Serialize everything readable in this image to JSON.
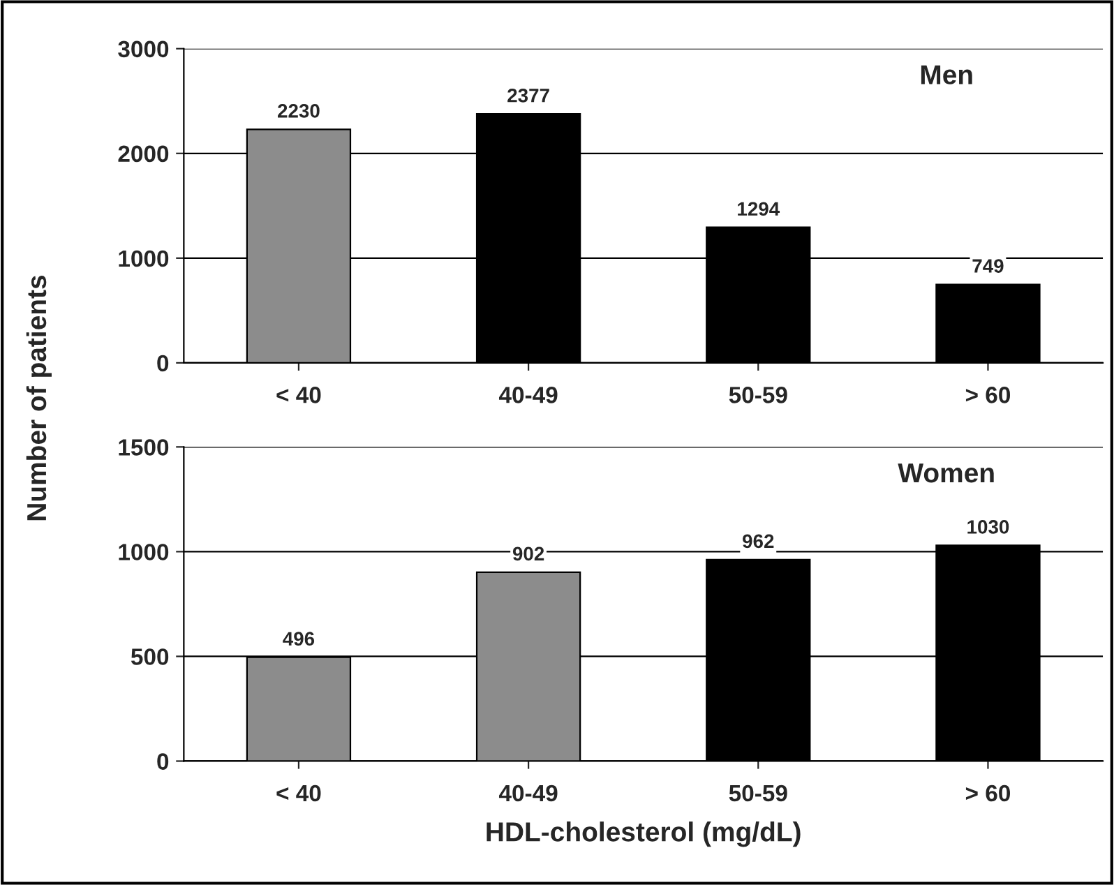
{
  "chart_data": [
    {
      "type": "bar",
      "title": "Men",
      "ylabel": "Number of patients",
      "categories": [
        "< 40",
        "40-49",
        "50-59",
        "> 60"
      ],
      "values": [
        2230,
        2377,
        1294,
        749
      ],
      "colors": [
        "#8c8c8c",
        "#000000",
        "#000000",
        "#000000"
      ],
      "ylim": [
        0,
        3000
      ],
      "yticks": [
        0,
        1000,
        2000,
        3000
      ],
      "grid": "y",
      "data_labels": true
    },
    {
      "type": "bar",
      "title": "Women",
      "xlabel": "HDL-cholesterol (mg/dL)",
      "categories": [
        "< 40",
        "40-49",
        "50-59",
        "> 60"
      ],
      "values": [
        496,
        902,
        962,
        1030
      ],
      "colors": [
        "#8c8c8c",
        "#8c8c8c",
        "#000000",
        "#000000"
      ],
      "ylim": [
        0,
        1500
      ],
      "yticks": [
        0,
        500,
        1000,
        1500
      ],
      "grid": "y",
      "data_labels": true
    }
  ]
}
